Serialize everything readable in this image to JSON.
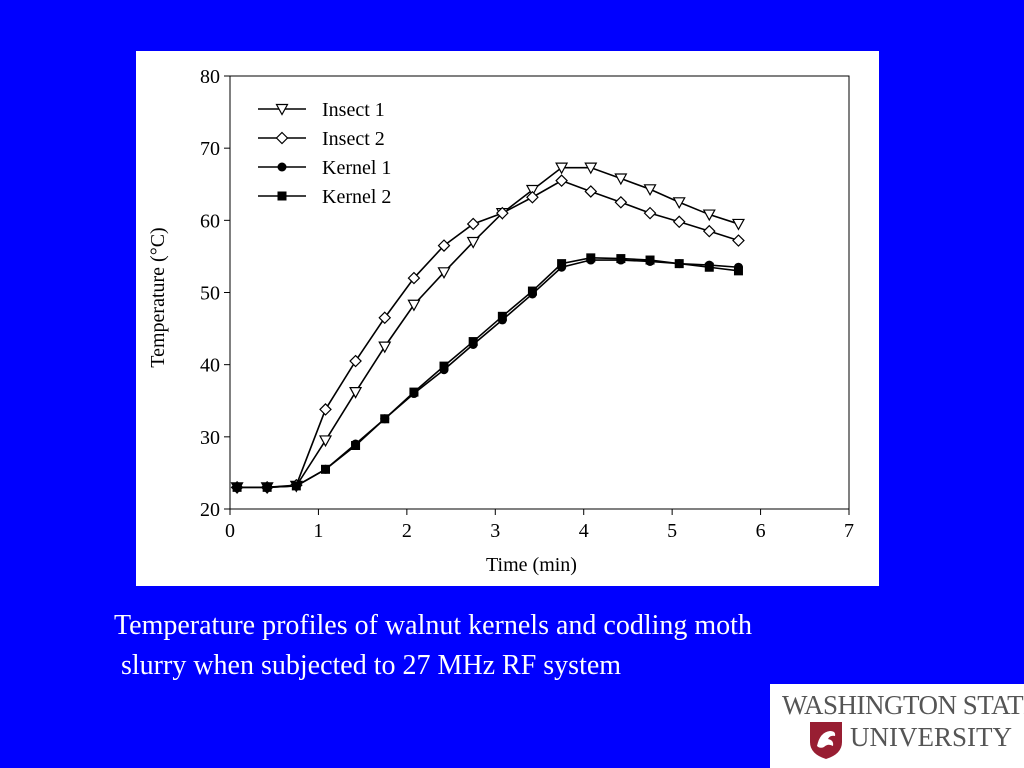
{
  "chart_data": {
    "type": "line",
    "title": "",
    "xlabel": "Time (min)",
    "ylabel": "Temperature (°C)",
    "xlim": [
      0,
      7
    ],
    "ylim": [
      20,
      80
    ],
    "x_ticks": [
      0,
      1,
      2,
      3,
      4,
      5,
      6,
      7
    ],
    "y_ticks": [
      20,
      30,
      40,
      50,
      60,
      70,
      80
    ],
    "grid": false,
    "legend_position": "top-left",
    "series": [
      {
        "name": "Insect 1",
        "marker": "triangle-down-open",
        "color": "#000000",
        "x": [
          0.08,
          0.42,
          0.75,
          1.08,
          1.42,
          1.75,
          2.08,
          2.42,
          2.75,
          3.08,
          3.42,
          3.75,
          4.08,
          4.42,
          4.75,
          5.08,
          5.42,
          5.75
        ],
        "y": [
          23.0,
          23.0,
          23.2,
          29.5,
          36.2,
          42.5,
          48.3,
          52.8,
          57.0,
          61.0,
          64.2,
          67.3,
          67.3,
          65.8,
          64.3,
          62.5,
          60.8,
          59.5
        ]
      },
      {
        "name": "Insect 2",
        "marker": "diamond-open",
        "color": "#000000",
        "x": [
          0.08,
          0.42,
          0.75,
          1.08,
          1.42,
          1.75,
          2.08,
          2.42,
          2.75,
          3.08,
          3.42,
          3.75,
          4.08,
          4.42,
          4.75,
          5.08,
          5.42,
          5.75
        ],
        "y": [
          23.0,
          23.0,
          23.3,
          33.8,
          40.5,
          46.5,
          52.0,
          56.5,
          59.5,
          61.0,
          63.2,
          65.5,
          64.0,
          62.5,
          61.0,
          59.8,
          58.5,
          57.2
        ]
      },
      {
        "name": "Kernel 1",
        "marker": "circle-filled",
        "color": "#000000",
        "x": [
          0.08,
          0.42,
          0.75,
          1.08,
          1.42,
          1.75,
          2.08,
          2.42,
          2.75,
          3.08,
          3.42,
          3.75,
          4.08,
          4.42,
          4.75,
          5.08,
          5.42,
          5.75
        ],
        "y": [
          23.0,
          23.0,
          23.2,
          25.5,
          29.0,
          32.5,
          36.0,
          39.3,
          42.8,
          46.2,
          49.8,
          53.5,
          54.5,
          54.5,
          54.3,
          54.0,
          53.8,
          53.5
        ]
      },
      {
        "name": "Kernel 2",
        "marker": "square-filled",
        "color": "#000000",
        "x": [
          0.08,
          0.42,
          0.75,
          1.08,
          1.42,
          1.75,
          2.08,
          2.42,
          2.75,
          3.08,
          3.42,
          3.75,
          4.08,
          4.42,
          4.75,
          5.08,
          5.42,
          5.75
        ],
        "y": [
          23.0,
          23.0,
          23.2,
          25.5,
          28.8,
          32.5,
          36.2,
          39.8,
          43.2,
          46.7,
          50.2,
          54.0,
          54.8,
          54.7,
          54.5,
          54.0,
          53.5,
          53.0
        ]
      }
    ]
  },
  "caption": {
    "line1": "Temperature profiles of walnut kernels and codling moth",
    "line2": " slurry when subjected to 27 MHz RF system"
  },
  "logo": {
    "line1": "WASHINGTON STATE",
    "line2": "UNIVERSITY",
    "seal_color": "#981e32"
  },
  "colors": {
    "background": "#0000ff",
    "panel": "#ffffff",
    "caption_text": "#ffffff"
  }
}
